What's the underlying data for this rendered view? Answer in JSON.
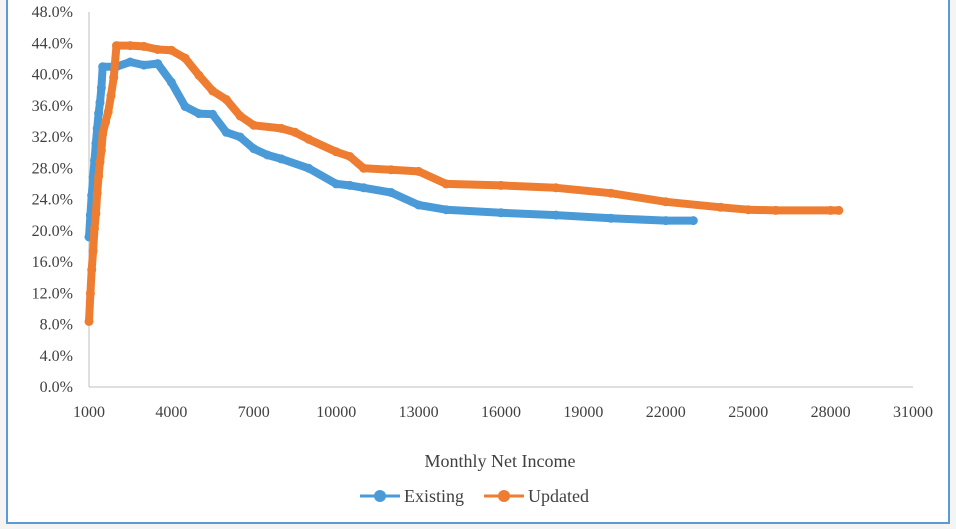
{
  "chart_data": {
    "type": "line",
    "title": "",
    "xlabel": "Monthly Net Income",
    "ylabel": "",
    "xlim": [
      1000,
      31000
    ],
    "ylim": [
      0,
      48
    ],
    "x_ticks": [
      "1000",
      "4000",
      "7000",
      "10000",
      "13000",
      "16000",
      "19000",
      "22000",
      "25000",
      "28000",
      "31000"
    ],
    "x_tick_values": [
      1000,
      4000,
      7000,
      10000,
      13000,
      16000,
      19000,
      22000,
      25000,
      28000,
      31000
    ],
    "y_ticks": [
      "0.0%",
      "4.0%",
      "8.0%",
      "12.0%",
      "16.0%",
      "20.0%",
      "24.0%",
      "28.0%",
      "32.0%",
      "36.0%",
      "40.0%",
      "44.0%",
      "48.0%"
    ],
    "y_tick_values": [
      0,
      4,
      8,
      12,
      16,
      20,
      24,
      28,
      32,
      36,
      40,
      44,
      48
    ],
    "grid": false,
    "legend": "bottom-center",
    "series": [
      {
        "name": "Existing",
        "color": "#4a9ad8",
        "x": [
          1000,
          1050,
          1100,
          1150,
          1200,
          1250,
          1300,
          1350,
          1400,
          1450,
          1500,
          2000,
          2500,
          3000,
          3500,
          4000,
          4500,
          5000,
          5500,
          6000,
          6500,
          7000,
          7500,
          8000,
          9000,
          10000,
          10500,
          11000,
          12000,
          13000,
          14000,
          16000,
          18000,
          20000,
          22000,
          23000
        ],
        "y": [
          19.2,
          22.0,
          24.5,
          26.8,
          29.0,
          31.2,
          33.1,
          35.0,
          36.4,
          38.3,
          41.0,
          41.0,
          41.6,
          41.2,
          41.4,
          39.0,
          35.9,
          35.0,
          34.9,
          32.6,
          32.0,
          30.5,
          29.7,
          29.2,
          28.0,
          26.0,
          25.8,
          25.5,
          24.9,
          23.3,
          22.7,
          22.3,
          22.0,
          21.6,
          21.3,
          21.3
        ]
      },
      {
        "name": "Updated",
        "color": "#ee7d31",
        "x": [
          1000,
          1050,
          1100,
          1150,
          1200,
          1250,
          1300,
          1350,
          1400,
          1450,
          1500,
          1600,
          1700,
          1800,
          1900,
          2000,
          2500,
          3000,
          3500,
          4000,
          4500,
          5000,
          5500,
          6000,
          6500,
          7000,
          8000,
          8500,
          9000,
          10000,
          10500,
          11000,
          12000,
          13000,
          14000,
          16000,
          18000,
          20000,
          22000,
          24000,
          25000,
          26000,
          28000,
          28300
        ],
        "y": [
          8.4,
          12.0,
          15.0,
          17.4,
          20.3,
          22.2,
          24.8,
          27.0,
          28.8,
          30.3,
          32.4,
          33.9,
          35.2,
          37.3,
          39.6,
          43.7,
          43.7,
          43.6,
          43.2,
          43.1,
          42.1,
          39.9,
          37.9,
          36.8,
          34.7,
          33.5,
          33.1,
          32.6,
          31.7,
          30.1,
          29.5,
          28.0,
          27.8,
          27.6,
          26.0,
          25.8,
          25.5,
          24.8,
          23.7,
          23.0,
          22.7,
          22.6,
          22.6,
          22.6
        ]
      }
    ]
  }
}
